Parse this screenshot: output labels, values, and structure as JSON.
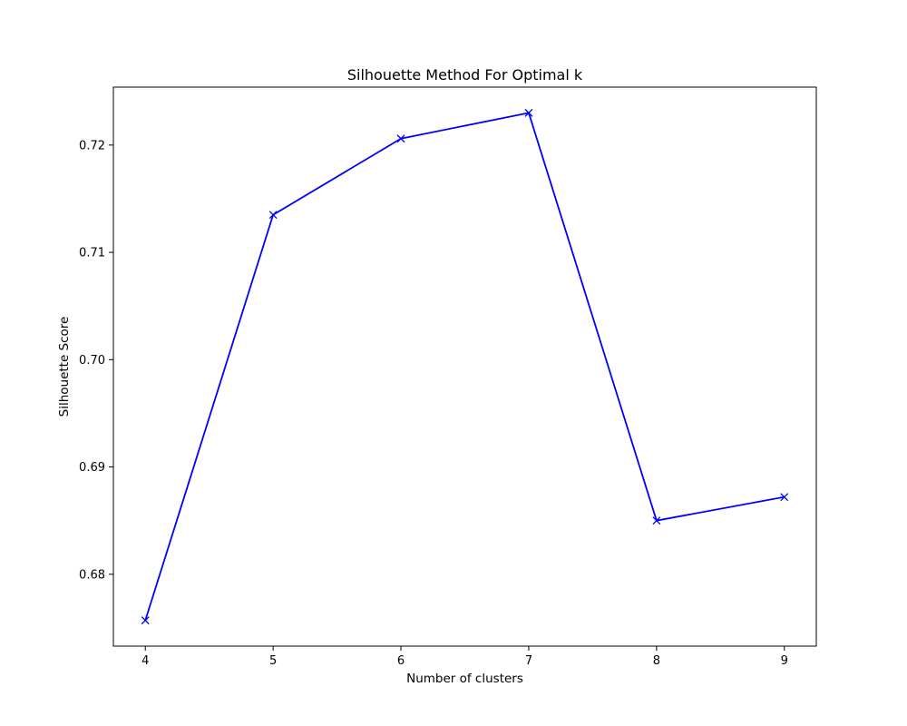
{
  "chart_data": {
    "type": "line",
    "title": "Silhouette Method For Optimal k",
    "xlabel": "Number of clusters",
    "ylabel": "Silhouette Score",
    "x": [
      4,
      5,
      6,
      7,
      8,
      9
    ],
    "series": [
      {
        "values": [
          0.6757,
          0.7135,
          0.7206,
          0.723,
          0.685,
          0.6872
        ],
        "color": "#0000ff",
        "marker": "x"
      }
    ],
    "xticks": [
      "4",
      "5",
      "6",
      "7",
      "8",
      "9"
    ],
    "yticks": [
      "0.68",
      "0.69",
      "0.70",
      "0.71",
      "0.72"
    ],
    "xlim": [
      3.75,
      9.25
    ],
    "ylim": [
      0.6733,
      0.7254
    ],
    "grid": false
  }
}
